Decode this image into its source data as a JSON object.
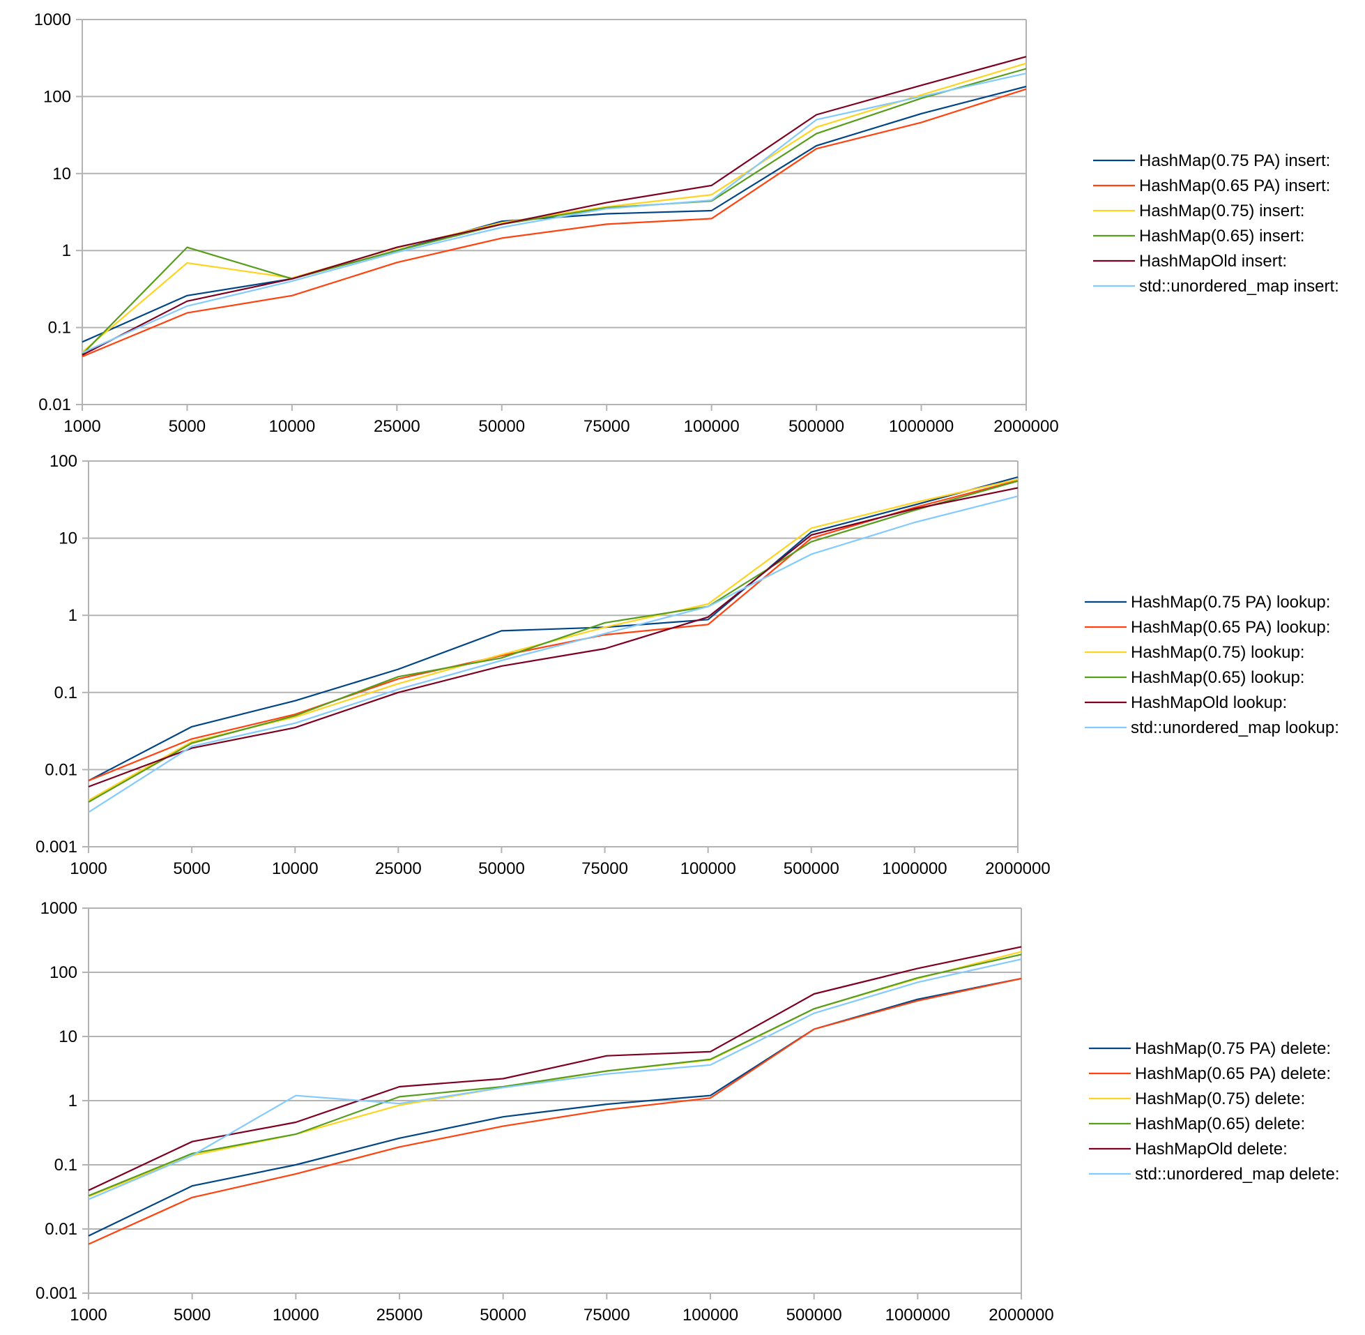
{
  "colors": {
    "series": [
      "#004586",
      "#ff420e",
      "#ffd320",
      "#579d1c",
      "#7e0021",
      "#83caff"
    ],
    "grid": "#b3b3b3",
    "axis": "#b3b3b3"
  },
  "chart_data": [
    {
      "type": "line",
      "title": "",
      "xlabel": "",
      "ylabel": "",
      "yscale": "log",
      "ylim": [
        0.01,
        1000
      ],
      "y_ticks": [
        "0.01",
        "0.1",
        "1",
        "10",
        "100",
        "1000"
      ],
      "grid": true,
      "legend_position": "right",
      "categories": [
        "1000",
        "5000",
        "10000",
        "25000",
        "50000",
        "75000",
        "100000",
        "500000",
        "1000000",
        "2000000"
      ],
      "series": [
        {
          "name": "HashMap(0.75 PA) insert:",
          "values": [
            0.065,
            0.26,
            0.43,
            1.0,
            2.4,
            3.0,
            3.3,
            23,
            60,
            135
          ]
        },
        {
          "name": "HashMap(0.65 PA) insert:",
          "values": [
            0.042,
            0.155,
            0.26,
            0.7,
            1.45,
            2.2,
            2.6,
            21,
            46,
            125
          ]
        },
        {
          "name": "HashMap(0.75) insert:",
          "values": [
            0.048,
            0.69,
            0.44,
            1.08,
            2.3,
            3.7,
            5.3,
            40,
            105,
            270
          ]
        },
        {
          "name": "HashMap(0.65) insert:",
          "values": [
            0.045,
            1.1,
            0.43,
            1.0,
            2.2,
            3.6,
            4.4,
            33,
            95,
            230
          ]
        },
        {
          "name": "HashMapOld insert:",
          "values": [
            0.044,
            0.22,
            0.43,
            1.1,
            2.2,
            4.2,
            7.0,
            58,
            140,
            330
          ]
        },
        {
          "name": "std::unordered_map insert:",
          "values": [
            0.047,
            0.19,
            0.4,
            0.95,
            2.0,
            3.5,
            4.5,
            50,
            100,
            200
          ]
        }
      ]
    },
    {
      "type": "line",
      "title": "",
      "xlabel": "",
      "ylabel": "",
      "yscale": "log",
      "ylim": [
        0.001,
        100
      ],
      "y_ticks": [
        "0.001",
        "0.01",
        "0.1",
        "1",
        "10",
        "100"
      ],
      "grid": true,
      "legend_position": "right",
      "categories": [
        "1000",
        "5000",
        "10000",
        "25000",
        "50000",
        "75000",
        "100000",
        "500000",
        "1000000",
        "2000000"
      ],
      "series": [
        {
          "name": "HashMap(0.75 PA) lookup:",
          "values": [
            0.0072,
            0.036,
            0.078,
            0.2,
            0.63,
            0.7,
            0.88,
            12,
            27,
            62
          ]
        },
        {
          "name": "HashMap(0.65 PA) lookup:",
          "values": [
            0.0072,
            0.025,
            0.052,
            0.15,
            0.3,
            0.56,
            0.76,
            10,
            25,
            56
          ]
        },
        {
          "name": "HashMap(0.75) lookup:",
          "values": [
            0.004,
            0.023,
            0.048,
            0.13,
            0.31,
            0.7,
            1.4,
            13.5,
            29,
            58
          ]
        },
        {
          "name": "HashMap(0.65) lookup:",
          "values": [
            0.0038,
            0.022,
            0.05,
            0.16,
            0.28,
            0.8,
            1.3,
            9,
            23,
            55
          ]
        },
        {
          "name": "HashMapOld lookup:",
          "values": [
            0.006,
            0.019,
            0.035,
            0.1,
            0.22,
            0.37,
            0.95,
            11,
            24,
            45
          ]
        },
        {
          "name": "std::unordered_map lookup:",
          "values": [
            0.0028,
            0.02,
            0.04,
            0.11,
            0.26,
            0.58,
            1.3,
            6.2,
            16,
            35
          ]
        }
      ]
    },
    {
      "type": "line",
      "title": "",
      "xlabel": "",
      "ylabel": "",
      "yscale": "log",
      "ylim": [
        0.001,
        1000
      ],
      "y_ticks": [
        "0.001",
        "0.01",
        "0.1",
        "1",
        "10",
        "100",
        "1000"
      ],
      "grid": true,
      "legend_position": "right",
      "categories": [
        "1000",
        "5000",
        "10000",
        "25000",
        "50000",
        "75000",
        "100000",
        "500000",
        "1000000",
        "2000000"
      ],
      "series": [
        {
          "name": "HashMap(0.75 PA) delete:",
          "values": [
            0.0078,
            0.047,
            0.1,
            0.26,
            0.56,
            0.88,
            1.2,
            13,
            38,
            80
          ]
        },
        {
          "name": "HashMap(0.65 PA) delete:",
          "values": [
            0.0058,
            0.031,
            0.072,
            0.19,
            0.4,
            0.72,
            1.1,
            13,
            36,
            80
          ]
        },
        {
          "name": "HashMap(0.75) delete:",
          "values": [
            0.032,
            0.14,
            0.3,
            0.85,
            1.6,
            2.9,
            4.3,
            27,
            80,
            210
          ]
        },
        {
          "name": "HashMap(0.65) delete:",
          "values": [
            0.033,
            0.15,
            0.3,
            1.15,
            1.65,
            2.9,
            4.4,
            27,
            82,
            190
          ]
        },
        {
          "name": "HashMapOld delete:",
          "values": [
            0.04,
            0.23,
            0.46,
            1.65,
            2.2,
            5.0,
            5.8,
            46,
            115,
            250
          ]
        },
        {
          "name": "std::unordered_map delete:",
          "values": [
            0.029,
            0.14,
            1.2,
            0.9,
            1.6,
            2.6,
            3.6,
            23,
            70,
            160
          ]
        }
      ]
    }
  ]
}
